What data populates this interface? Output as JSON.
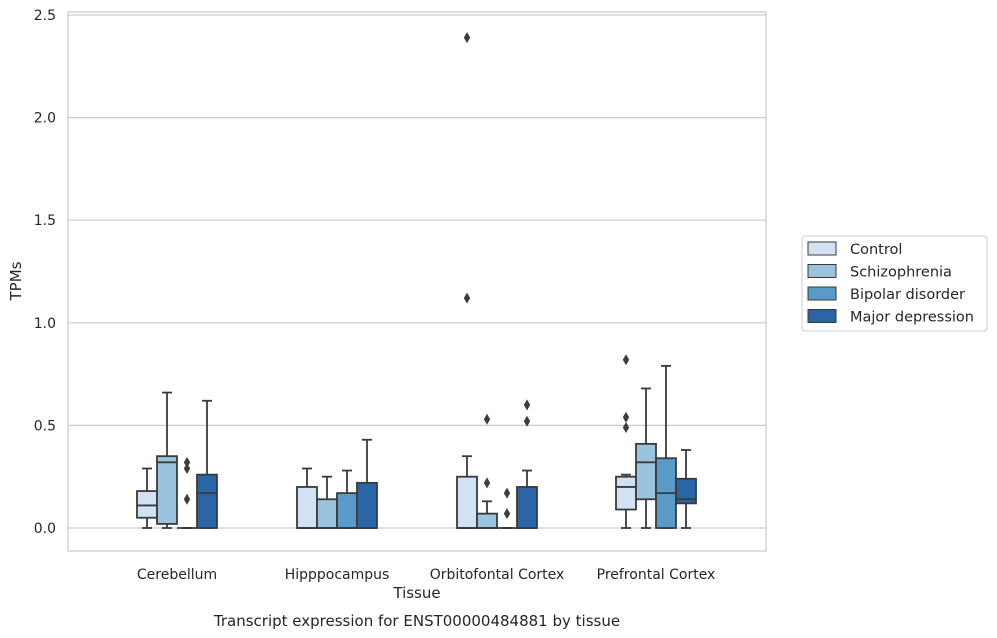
{
  "chart_data": {
    "type": "box",
    "title": "Transcript expression for ENST00000484881 by tissue",
    "xlabel": "Tissue",
    "ylabel": "TPMs",
    "ylim": [
      -0.12,
      2.52
    ],
    "yticks": [
      0.0,
      0.5,
      1.0,
      1.5,
      2.0,
      2.5
    ],
    "ytick_labels": [
      "0.0",
      "0.5",
      "1.0",
      "1.5",
      "2.0",
      "2.5"
    ],
    "grid": "horizontal",
    "legend_position": "right",
    "categories": [
      "Cerebellum",
      "Hipppocampus",
      "Orbitofontal Cortex",
      "Prefrontal Cortex"
    ],
    "series": [
      {
        "name": "Control",
        "color": "#d0e2f3",
        "boxes": [
          {
            "whislo": 0.0,
            "q1": 0.05,
            "med": 0.11,
            "q3": 0.18,
            "whishi": 0.29,
            "fliers": []
          },
          {
            "whislo": 0.0,
            "q1": 0.0,
            "med": 0.0,
            "q3": 0.2,
            "whishi": 0.29,
            "fliers": []
          },
          {
            "whislo": 0.0,
            "q1": 0.0,
            "med": 0.0,
            "q3": 0.25,
            "whishi": 0.35,
            "fliers": [
              1.12,
              2.39
            ]
          },
          {
            "whislo": 0.0,
            "q1": 0.09,
            "med": 0.2,
            "q3": 0.25,
            "whishi": 0.26,
            "fliers": [
              0.49,
              0.54,
              0.82
            ]
          }
        ]
      },
      {
        "name": "Schizophrenia",
        "color": "#9ac4de",
        "boxes": [
          {
            "whislo": 0.0,
            "q1": 0.02,
            "med": 0.32,
            "q3": 0.35,
            "whishi": 0.66,
            "fliers": []
          },
          {
            "whislo": 0.0,
            "q1": 0.0,
            "med": 0.0,
            "q3": 0.14,
            "whishi": 0.25,
            "fliers": []
          },
          {
            "whislo": 0.0,
            "q1": 0.0,
            "med": 0.0,
            "q3": 0.07,
            "whishi": 0.13,
            "fliers": [
              0.22,
              0.53
            ]
          },
          {
            "whislo": 0.0,
            "q1": 0.14,
            "med": 0.32,
            "q3": 0.41,
            "whishi": 0.68,
            "fliers": []
          }
        ]
      },
      {
        "name": "Bipolar disorder",
        "color": "#5a9ac8",
        "boxes": [
          {
            "whislo": 0.0,
            "q1": 0.0,
            "med": 0.0,
            "q3": 0.0,
            "whishi": 0.0,
            "fliers": [
              0.14,
              0.29,
              0.32
            ]
          },
          {
            "whislo": 0.0,
            "q1": 0.0,
            "med": 0.0,
            "q3": 0.17,
            "whishi": 0.28,
            "fliers": []
          },
          {
            "whislo": 0.0,
            "q1": 0.0,
            "med": 0.0,
            "q3": 0.0,
            "whishi": 0.0,
            "fliers": [
              0.07,
              0.17
            ]
          },
          {
            "whislo": 0.0,
            "q1": 0.0,
            "med": 0.17,
            "q3": 0.34,
            "whishi": 0.79,
            "fliers": []
          }
        ]
      },
      {
        "name": "Major depression",
        "color": "#2a66a5",
        "boxes": [
          {
            "whislo": 0.0,
            "q1": 0.0,
            "med": 0.17,
            "q3": 0.26,
            "whishi": 0.62,
            "fliers": []
          },
          {
            "whislo": 0.0,
            "q1": 0.0,
            "med": 0.0,
            "q3": 0.22,
            "whishi": 0.43,
            "fliers": []
          },
          {
            "whislo": 0.0,
            "q1": 0.0,
            "med": 0.0,
            "q3": 0.2,
            "whishi": 0.28,
            "fliers": [
              0.52,
              0.6
            ]
          },
          {
            "whislo": 0.0,
            "q1": 0.12,
            "med": 0.14,
            "q3": 0.24,
            "whishi": 0.38,
            "fliers": []
          }
        ]
      }
    ]
  }
}
